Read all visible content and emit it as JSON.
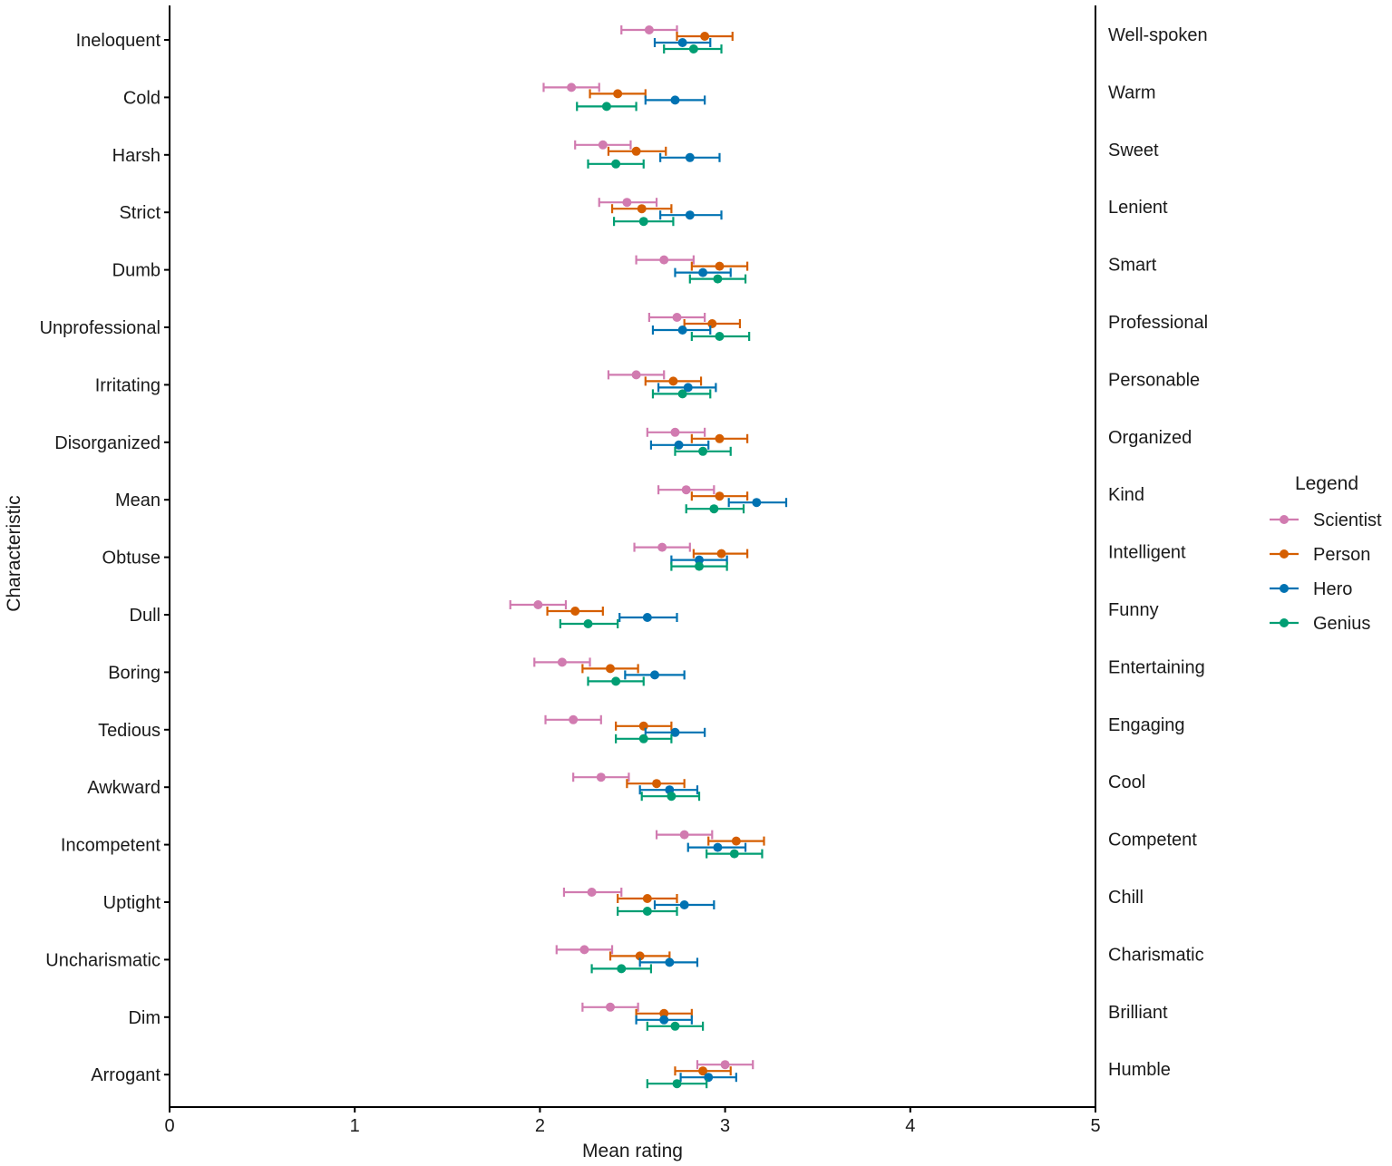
{
  "chart_data": {
    "type": "scatter",
    "subtype": "dot-with-error-bars",
    "xlabel": "Mean rating",
    "ylabel": "Characteristic",
    "xlim": [
      0,
      5
    ],
    "x_ticks": [
      "0",
      "1",
      "2",
      "3",
      "4",
      "5"
    ],
    "grid": false,
    "legend": {
      "title": "Legend",
      "position": "right"
    },
    "series": [
      {
        "name": "Scientist",
        "color": "#d17bb0"
      },
      {
        "name": "Person",
        "color": "#d55e00"
      },
      {
        "name": "Hero",
        "color": "#0072b2"
      },
      {
        "name": "Genius",
        "color": "#009e73"
      }
    ],
    "rows": [
      {
        "left": "Ineloquent",
        "right": "Well-spoken",
        "values": [
          {
            "series": "Scientist",
            "mean": 2.59,
            "low": 2.44,
            "high": 2.74
          },
          {
            "series": "Person",
            "mean": 2.89,
            "low": 2.74,
            "high": 3.04
          },
          {
            "series": "Hero",
            "mean": 2.77,
            "low": 2.62,
            "high": 2.92
          },
          {
            "series": "Genius",
            "mean": 2.83,
            "low": 2.67,
            "high": 2.98
          }
        ]
      },
      {
        "left": "Cold",
        "right": "Warm",
        "values": [
          {
            "series": "Scientist",
            "mean": 2.17,
            "low": 2.02,
            "high": 2.32
          },
          {
            "series": "Person",
            "mean": 2.42,
            "low": 2.27,
            "high": 2.57
          },
          {
            "series": "Hero",
            "mean": 2.73,
            "low": 2.57,
            "high": 2.89
          },
          {
            "series": "Genius",
            "mean": 2.36,
            "low": 2.2,
            "high": 2.52
          }
        ]
      },
      {
        "left": "Harsh",
        "right": "Sweet",
        "values": [
          {
            "series": "Scientist",
            "mean": 2.34,
            "low": 2.19,
            "high": 2.49
          },
          {
            "series": "Person",
            "mean": 2.52,
            "low": 2.37,
            "high": 2.68
          },
          {
            "series": "Hero",
            "mean": 2.81,
            "low": 2.65,
            "high": 2.97
          },
          {
            "series": "Genius",
            "mean": 2.41,
            "low": 2.26,
            "high": 2.56
          }
        ]
      },
      {
        "left": "Strict",
        "right": "Lenient",
        "values": [
          {
            "series": "Scientist",
            "mean": 2.47,
            "low": 2.32,
            "high": 2.63
          },
          {
            "series": "Person",
            "mean": 2.55,
            "low": 2.39,
            "high": 2.71
          },
          {
            "series": "Hero",
            "mean": 2.81,
            "low": 2.65,
            "high": 2.98
          },
          {
            "series": "Genius",
            "mean": 2.56,
            "low": 2.4,
            "high": 2.72
          }
        ]
      },
      {
        "left": "Dumb",
        "right": "Smart",
        "values": [
          {
            "series": "Scientist",
            "mean": 2.67,
            "low": 2.52,
            "high": 2.83
          },
          {
            "series": "Person",
            "mean": 2.97,
            "low": 2.82,
            "high": 3.12
          },
          {
            "series": "Hero",
            "mean": 2.88,
            "low": 2.73,
            "high": 3.03
          },
          {
            "series": "Genius",
            "mean": 2.96,
            "low": 2.81,
            "high": 3.11
          }
        ]
      },
      {
        "left": "Unprofessional",
        "right": "Professional",
        "values": [
          {
            "series": "Scientist",
            "mean": 2.74,
            "low": 2.59,
            "high": 2.89
          },
          {
            "series": "Person",
            "mean": 2.93,
            "low": 2.78,
            "high": 3.08
          },
          {
            "series": "Hero",
            "mean": 2.77,
            "low": 2.61,
            "high": 2.92
          },
          {
            "series": "Genius",
            "mean": 2.97,
            "low": 2.82,
            "high": 3.13
          }
        ]
      },
      {
        "left": "Irritating",
        "right": "Personable",
        "values": [
          {
            "series": "Scientist",
            "mean": 2.52,
            "low": 2.37,
            "high": 2.67
          },
          {
            "series": "Person",
            "mean": 2.72,
            "low": 2.57,
            "high": 2.87
          },
          {
            "series": "Hero",
            "mean": 2.8,
            "low": 2.64,
            "high": 2.95
          },
          {
            "series": "Genius",
            "mean": 2.77,
            "low": 2.61,
            "high": 2.92
          }
        ]
      },
      {
        "left": "Disorganized",
        "right": "Organized",
        "values": [
          {
            "series": "Scientist",
            "mean": 2.73,
            "low": 2.58,
            "high": 2.89
          },
          {
            "series": "Person",
            "mean": 2.97,
            "low": 2.82,
            "high": 3.12
          },
          {
            "series": "Hero",
            "mean": 2.75,
            "low": 2.6,
            "high": 2.91
          },
          {
            "series": "Genius",
            "mean": 2.88,
            "low": 2.73,
            "high": 3.03
          }
        ]
      },
      {
        "left": "Mean",
        "right": "Kind",
        "values": [
          {
            "series": "Scientist",
            "mean": 2.79,
            "low": 2.64,
            "high": 2.94
          },
          {
            "series": "Person",
            "mean": 2.97,
            "low": 2.82,
            "high": 3.12
          },
          {
            "series": "Hero",
            "mean": 3.17,
            "low": 3.02,
            "high": 3.33
          },
          {
            "series": "Genius",
            "mean": 2.94,
            "low": 2.79,
            "high": 3.1
          }
        ]
      },
      {
        "left": "Obtuse",
        "right": "Intelligent",
        "values": [
          {
            "series": "Scientist",
            "mean": 2.66,
            "low": 2.51,
            "high": 2.81
          },
          {
            "series": "Person",
            "mean": 2.98,
            "low": 2.83,
            "high": 3.12
          },
          {
            "series": "Hero",
            "mean": 2.86,
            "low": 2.71,
            "high": 3.01
          },
          {
            "series": "Genius",
            "mean": 2.86,
            "low": 2.71,
            "high": 3.01
          }
        ]
      },
      {
        "left": "Dull",
        "right": "Funny",
        "values": [
          {
            "series": "Scientist",
            "mean": 1.99,
            "low": 1.84,
            "high": 2.14
          },
          {
            "series": "Person",
            "mean": 2.19,
            "low": 2.04,
            "high": 2.34
          },
          {
            "series": "Hero",
            "mean": 2.58,
            "low": 2.43,
            "high": 2.74
          },
          {
            "series": "Genius",
            "mean": 2.26,
            "low": 2.11,
            "high": 2.42
          }
        ]
      },
      {
        "left": "Boring",
        "right": "Entertaining",
        "values": [
          {
            "series": "Scientist",
            "mean": 2.12,
            "low": 1.97,
            "high": 2.27
          },
          {
            "series": "Person",
            "mean": 2.38,
            "low": 2.23,
            "high": 2.53
          },
          {
            "series": "Hero",
            "mean": 2.62,
            "low": 2.46,
            "high": 2.78
          },
          {
            "series": "Genius",
            "mean": 2.41,
            "low": 2.26,
            "high": 2.56
          }
        ]
      },
      {
        "left": "Tedious",
        "right": "Engaging",
        "values": [
          {
            "series": "Scientist",
            "mean": 2.18,
            "low": 2.03,
            "high": 2.33
          },
          {
            "series": "Person",
            "mean": 2.56,
            "low": 2.41,
            "high": 2.71
          },
          {
            "series": "Hero",
            "mean": 2.73,
            "low": 2.57,
            "high": 2.89
          },
          {
            "series": "Genius",
            "mean": 2.56,
            "low": 2.41,
            "high": 2.71
          }
        ]
      },
      {
        "left": "Awkward",
        "right": "Cool",
        "values": [
          {
            "series": "Scientist",
            "mean": 2.33,
            "low": 2.18,
            "high": 2.48
          },
          {
            "series": "Person",
            "mean": 2.63,
            "low": 2.47,
            "high": 2.78
          },
          {
            "series": "Hero",
            "mean": 2.7,
            "low": 2.54,
            "high": 2.85
          },
          {
            "series": "Genius",
            "mean": 2.71,
            "low": 2.55,
            "high": 2.86
          }
        ]
      },
      {
        "left": "Incompetent",
        "right": "Competent",
        "values": [
          {
            "series": "Scientist",
            "mean": 2.78,
            "low": 2.63,
            "high": 2.93
          },
          {
            "series": "Person",
            "mean": 3.06,
            "low": 2.91,
            "high": 3.21
          },
          {
            "series": "Hero",
            "mean": 2.96,
            "low": 2.8,
            "high": 3.11
          },
          {
            "series": "Genius",
            "mean": 3.05,
            "low": 2.9,
            "high": 3.2
          }
        ]
      },
      {
        "left": "Uptight",
        "right": "Chill",
        "values": [
          {
            "series": "Scientist",
            "mean": 2.28,
            "low": 2.13,
            "high": 2.44
          },
          {
            "series": "Person",
            "mean": 2.58,
            "low": 2.42,
            "high": 2.74
          },
          {
            "series": "Hero",
            "mean": 2.78,
            "low": 2.62,
            "high": 2.94
          },
          {
            "series": "Genius",
            "mean": 2.58,
            "low": 2.42,
            "high": 2.74
          }
        ]
      },
      {
        "left": "Uncharismatic",
        "right": "Charismatic",
        "values": [
          {
            "series": "Scientist",
            "mean": 2.24,
            "low": 2.09,
            "high": 2.39
          },
          {
            "series": "Person",
            "mean": 2.54,
            "low": 2.38,
            "high": 2.7
          },
          {
            "series": "Hero",
            "mean": 2.7,
            "low": 2.54,
            "high": 2.85
          },
          {
            "series": "Genius",
            "mean": 2.44,
            "low": 2.28,
            "high": 2.6
          }
        ]
      },
      {
        "left": "Dim",
        "right": "Brilliant",
        "values": [
          {
            "series": "Scientist",
            "mean": 2.38,
            "low": 2.23,
            "high": 2.53
          },
          {
            "series": "Person",
            "mean": 2.67,
            "low": 2.52,
            "high": 2.82
          },
          {
            "series": "Hero",
            "mean": 2.67,
            "low": 2.52,
            "high": 2.82
          },
          {
            "series": "Genius",
            "mean": 2.73,
            "low": 2.58,
            "high": 2.88
          }
        ]
      },
      {
        "left": "Arrogant",
        "right": "Humble",
        "values": [
          {
            "series": "Scientist",
            "mean": 3.0,
            "low": 2.85,
            "high": 3.15
          },
          {
            "series": "Person",
            "mean": 2.88,
            "low": 2.73,
            "high": 3.03
          },
          {
            "series": "Hero",
            "mean": 2.91,
            "low": 2.76,
            "high": 3.06
          },
          {
            "series": "Genius",
            "mean": 2.74,
            "low": 2.58,
            "high": 2.9
          }
        ]
      }
    ]
  }
}
